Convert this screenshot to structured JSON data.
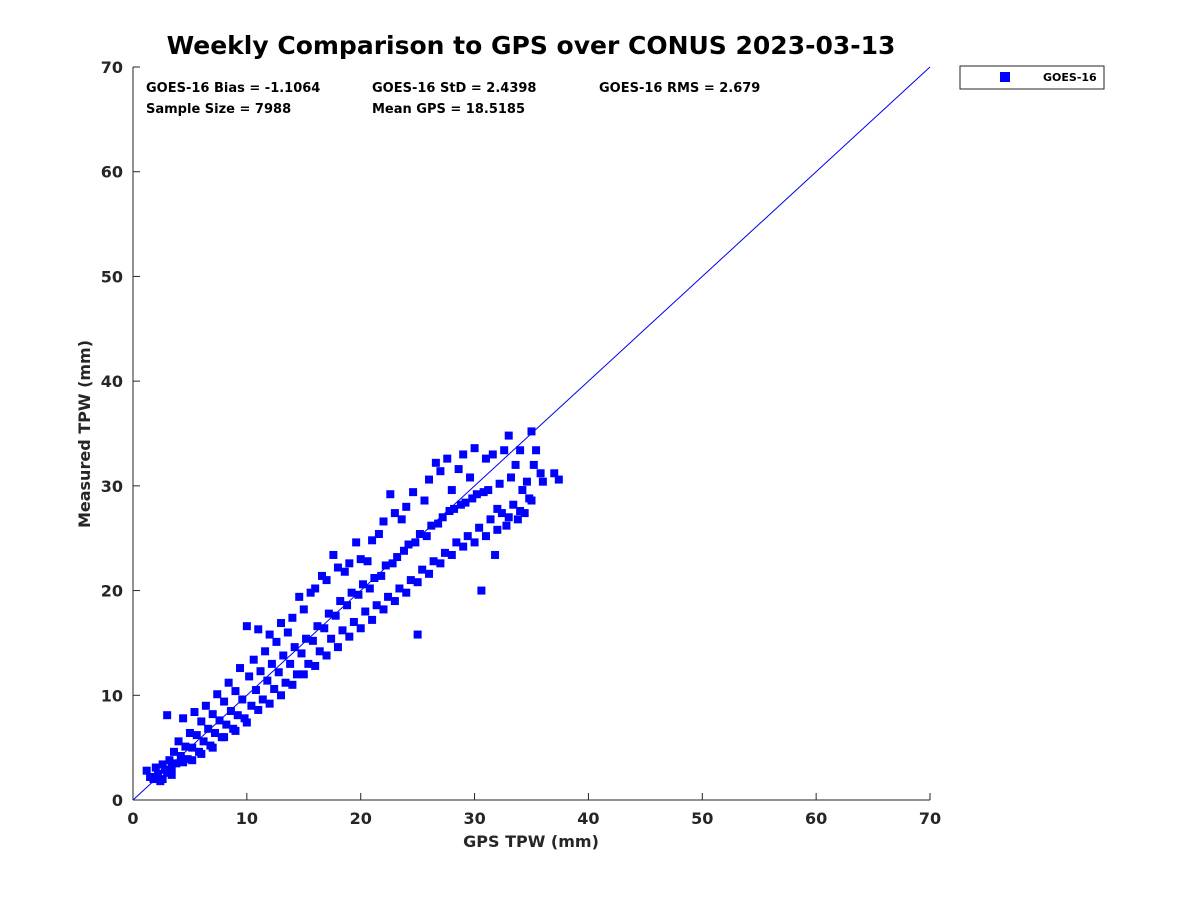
{
  "chart_data": {
    "type": "scatter",
    "title": "Weekly Comparison to GPS over CONUS 2023-03-13",
    "xlabel": "GPS TPW (mm)",
    "ylabel": "Measured TPW (mm)",
    "xlim": [
      0,
      70
    ],
    "ylim": [
      0,
      70
    ],
    "xticks": [
      0,
      10,
      20,
      30,
      40,
      50,
      60,
      70
    ],
    "yticks": [
      0,
      10,
      20,
      30,
      40,
      50,
      60,
      70
    ],
    "grid": false,
    "legend_position": "outside-top-right",
    "reference_line": {
      "kind": "one-to-one",
      "from": [
        0,
        0
      ],
      "to": [
        70,
        70
      ],
      "color": "#0000ee"
    },
    "stats": {
      "bias": "GOES-16 Bias = -1.1064",
      "std": "GOES-16 StD = 2.4398",
      "rms": "GOES-16 RMS = 2.679",
      "sample_size": "Sample Size = 7988",
      "mean_gps": "Mean GPS = 18.5185"
    },
    "series": [
      {
        "name": "GOES-16",
        "color": "#0000ff",
        "marker": "square",
        "points": [
          [
            1.2,
            2.8
          ],
          [
            1.5,
            2.2
          ],
          [
            1.8,
            2.0
          ],
          [
            2.0,
            3.1
          ],
          [
            2.2,
            2.5
          ],
          [
            2.4,
            1.8
          ],
          [
            2.6,
            3.4
          ],
          [
            2.8,
            2.9
          ],
          [
            3.0,
            8.1
          ],
          [
            3.0,
            2.6
          ],
          [
            3.2,
            3.8
          ],
          [
            3.4,
            3.1
          ],
          [
            3.6,
            4.6
          ],
          [
            3.8,
            3.5
          ],
          [
            4.0,
            5.6
          ],
          [
            4.2,
            4.2
          ],
          [
            4.4,
            7.8
          ],
          [
            4.6,
            5.1
          ],
          [
            4.8,
            3.9
          ],
          [
            5.0,
            6.4
          ],
          [
            5.2,
            5.0
          ],
          [
            5.4,
            8.4
          ],
          [
            5.6,
            6.2
          ],
          [
            5.8,
            4.6
          ],
          [
            6.0,
            7.5
          ],
          [
            6.2,
            5.6
          ],
          [
            6.4,
            9.0
          ],
          [
            6.6,
            6.8
          ],
          [
            6.8,
            5.2
          ],
          [
            7.0,
            8.2
          ],
          [
            7.2,
            6.4
          ],
          [
            7.4,
            10.1
          ],
          [
            7.6,
            7.6
          ],
          [
            7.8,
            6.0
          ],
          [
            8.0,
            9.4
          ],
          [
            8.2,
            7.2
          ],
          [
            8.4,
            11.2
          ],
          [
            8.6,
            8.5
          ],
          [
            8.8,
            6.8
          ],
          [
            9.0,
            10.4
          ],
          [
            9.2,
            8.1
          ],
          [
            9.4,
            12.6
          ],
          [
            9.6,
            9.6
          ],
          [
            9.8,
            7.8
          ],
          [
            10.0,
            16.6
          ],
          [
            10.2,
            11.8
          ],
          [
            10.4,
            9.0
          ],
          [
            10.6,
            13.4
          ],
          [
            10.8,
            10.5
          ],
          [
            11.0,
            16.3
          ],
          [
            11.2,
            12.3
          ],
          [
            11.4,
            9.6
          ],
          [
            11.6,
            14.2
          ],
          [
            11.8,
            11.4
          ],
          [
            12.0,
            15.8
          ],
          [
            12.2,
            13.0
          ],
          [
            12.4,
            10.6
          ],
          [
            12.6,
            15.1
          ],
          [
            12.8,
            12.2
          ],
          [
            13.0,
            16.9
          ],
          [
            13.2,
            13.8
          ],
          [
            13.4,
            11.2
          ],
          [
            13.6,
            16.0
          ],
          [
            13.8,
            13.0
          ],
          [
            14.0,
            17.4
          ],
          [
            14.2,
            14.6
          ],
          [
            14.4,
            12.0
          ],
          [
            14.6,
            19.4
          ],
          [
            14.8,
            14.0
          ],
          [
            15.0,
            18.2
          ],
          [
            15.2,
            15.4
          ],
          [
            15.4,
            13.0
          ],
          [
            15.6,
            19.8
          ],
          [
            15.8,
            15.2
          ],
          [
            16.0,
            20.2
          ],
          [
            16.2,
            16.6
          ],
          [
            16.4,
            14.2
          ],
          [
            16.6,
            21.4
          ],
          [
            16.8,
            16.4
          ],
          [
            17.0,
            21.0
          ],
          [
            17.2,
            17.8
          ],
          [
            17.4,
            15.4
          ],
          [
            17.6,
            23.4
          ],
          [
            17.8,
            17.6
          ],
          [
            18.0,
            22.2
          ],
          [
            18.2,
            19.0
          ],
          [
            18.4,
            16.2
          ],
          [
            18.6,
            21.8
          ],
          [
            18.8,
            18.6
          ],
          [
            19.0,
            22.6
          ],
          [
            19.2,
            19.8
          ],
          [
            19.4,
            17.0
          ],
          [
            19.6,
            24.6
          ],
          [
            19.8,
            19.6
          ],
          [
            20.0,
            23.0
          ],
          [
            20.2,
            20.6
          ],
          [
            20.4,
            18.0
          ],
          [
            20.6,
            22.8
          ],
          [
            20.8,
            20.2
          ],
          [
            21.0,
            24.8
          ],
          [
            21.2,
            21.2
          ],
          [
            21.4,
            18.6
          ],
          [
            21.6,
            25.4
          ],
          [
            21.8,
            21.4
          ],
          [
            22.0,
            26.6
          ],
          [
            22.2,
            22.4
          ],
          [
            22.4,
            19.4
          ],
          [
            22.6,
            29.2
          ],
          [
            22.8,
            22.6
          ],
          [
            23.0,
            27.4
          ],
          [
            23.2,
            23.2
          ],
          [
            23.4,
            20.2
          ],
          [
            23.6,
            26.8
          ],
          [
            23.8,
            23.8
          ],
          [
            24.0,
            28.0
          ],
          [
            24.2,
            24.4
          ],
          [
            24.4,
            21.0
          ],
          [
            24.6,
            29.4
          ],
          [
            24.8,
            24.6
          ],
          [
            25.0,
            15.8
          ],
          [
            25.2,
            25.4
          ],
          [
            25.4,
            22.0
          ],
          [
            25.6,
            28.6
          ],
          [
            25.8,
            25.2
          ],
          [
            26.0,
            30.6
          ],
          [
            26.2,
            26.2
          ],
          [
            26.4,
            22.8
          ],
          [
            26.6,
            32.2
          ],
          [
            26.8,
            26.4
          ],
          [
            27.0,
            31.4
          ],
          [
            27.2,
            27.0
          ],
          [
            27.4,
            23.6
          ],
          [
            27.6,
            32.6
          ],
          [
            27.8,
            27.6
          ],
          [
            28.0,
            29.6
          ],
          [
            28.2,
            27.8
          ],
          [
            28.4,
            24.6
          ],
          [
            28.6,
            31.6
          ],
          [
            28.8,
            28.2
          ],
          [
            29.0,
            33.0
          ],
          [
            29.2,
            28.4
          ],
          [
            29.4,
            25.2
          ],
          [
            29.6,
            30.8
          ],
          [
            29.8,
            28.8
          ],
          [
            30.0,
            33.6
          ],
          [
            30.2,
            29.2
          ],
          [
            30.4,
            26.0
          ],
          [
            30.6,
            20.0
          ],
          [
            30.8,
            29.4
          ],
          [
            31.0,
            32.6
          ],
          [
            31.2,
            29.6
          ],
          [
            31.4,
            26.8
          ],
          [
            31.6,
            33.0
          ],
          [
            31.8,
            23.4
          ],
          [
            32.0,
            27.8
          ],
          [
            32.2,
            30.2
          ],
          [
            32.4,
            27.4
          ],
          [
            32.6,
            33.4
          ],
          [
            32.8,
            26.2
          ],
          [
            33.0,
            34.8
          ],
          [
            33.2,
            30.8
          ],
          [
            33.4,
            28.2
          ],
          [
            33.6,
            32.0
          ],
          [
            33.8,
            26.8
          ],
          [
            34.0,
            33.4
          ],
          [
            34.2,
            29.6
          ],
          [
            34.4,
            27.4
          ],
          [
            34.6,
            30.4
          ],
          [
            34.8,
            28.8
          ],
          [
            35.0,
            35.2
          ],
          [
            35.2,
            32.0
          ],
          [
            35.4,
            33.4
          ],
          [
            35.8,
            31.2
          ],
          [
            36.0,
            30.4
          ],
          [
            37.0,
            31.2
          ],
          [
            37.4,
            30.6
          ],
          [
            2.6,
            2.0
          ],
          [
            3.4,
            2.4
          ],
          [
            4.4,
            3.6
          ],
          [
            5.2,
            3.8
          ],
          [
            6.0,
            4.4
          ],
          [
            7.0,
            5.0
          ],
          [
            8.0,
            6.0
          ],
          [
            9.0,
            6.6
          ],
          [
            10.0,
            7.4
          ],
          [
            11.0,
            8.6
          ],
          [
            12.0,
            9.2
          ],
          [
            13.0,
            10.0
          ],
          [
            14.0,
            11.0
          ],
          [
            15.0,
            12.0
          ],
          [
            16.0,
            12.8
          ],
          [
            17.0,
            13.8
          ],
          [
            18.0,
            14.6
          ],
          [
            19.0,
            15.6
          ],
          [
            20.0,
            16.4
          ],
          [
            21.0,
            17.2
          ],
          [
            22.0,
            18.2
          ],
          [
            23.0,
            19.0
          ],
          [
            24.0,
            19.8
          ],
          [
            25.0,
            20.8
          ],
          [
            26.0,
            21.6
          ],
          [
            27.0,
            22.6
          ],
          [
            28.0,
            23.4
          ],
          [
            29.0,
            24.2
          ],
          [
            30.0,
            24.6
          ],
          [
            31.0,
            25.2
          ],
          [
            32.0,
            25.8
          ],
          [
            33.0,
            27.0
          ],
          [
            34.0,
            27.6
          ],
          [
            35.0,
            28.6
          ]
        ]
      }
    ]
  }
}
